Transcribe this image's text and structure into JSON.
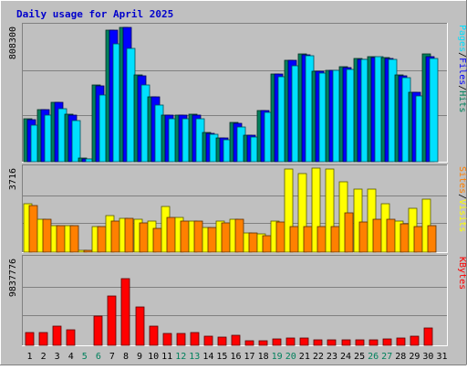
{
  "title": "Daily usage for April 2025",
  "colors": {
    "background": "#c0c0c0",
    "frame_light": "#ffffff",
    "frame_dark": "#808080",
    "grid": "#808080",
    "title": "#0000cc",
    "hits": "#00805c",
    "files": "#0000ff",
    "pages": "#00e0ff",
    "visits": "#ffff00",
    "sites": "#ff8000",
    "kbytes": "#ff0000",
    "weekend_label": "#00805c",
    "weekday_label": "#000000"
  },
  "chart_data": [
    {
      "type": "bar",
      "panel": "top",
      "y_max_label": "808300",
      "categories": [
        "1",
        "2",
        "3",
        "4",
        "5",
        "6",
        "7",
        "8",
        "9",
        "10",
        "11",
        "12",
        "13",
        "14",
        "15",
        "16",
        "17",
        "18",
        "19",
        "20",
        "21",
        "22",
        "23",
        "24",
        "25",
        "26",
        "27",
        "28",
        "29",
        "30",
        "31"
      ],
      "weekend_days": [
        "5",
        "6",
        "12",
        "13",
        "19",
        "20",
        "26",
        "27"
      ],
      "ylim": [
        0,
        808300
      ],
      "legend": [
        {
          "name": "Hits",
          "color": "#00805c"
        },
        {
          "name": "Files",
          "color": "#0000ff"
        },
        {
          "name": "Pages",
          "color": "#00e0ff"
        }
      ],
      "series": [
        {
          "name": "Hits",
          "values": [
            260000,
            315000,
            360000,
            285000,
            20000,
            460000,
            790000,
            810000,
            520000,
            390000,
            280000,
            280000,
            285000,
            175000,
            145000,
            235000,
            160000,
            310000,
            530000,
            610000,
            650000,
            545000,
            550000,
            570000,
            620000,
            630000,
            625000,
            520000,
            420000,
            650000,
            0
          ]
        },
        {
          "name": "Files",
          "values": [
            255000,
            315000,
            358000,
            280000,
            18000,
            458000,
            790000,
            808000,
            518000,
            388000,
            280000,
            278000,
            283000,
            172000,
            142000,
            232000,
            158000,
            308000,
            528000,
            608000,
            645000,
            543000,
            548000,
            568000,
            617000,
            628000,
            622000,
            518000,
            418000,
            630000,
            0
          ]
        },
        {
          "name": "Pages",
          "values": [
            220000,
            280000,
            320000,
            250000,
            16000,
            400000,
            710000,
            680000,
            460000,
            340000,
            260000,
            260000,
            260000,
            165000,
            132000,
            210000,
            150000,
            295000,
            510000,
            580000,
            640000,
            535000,
            550000,
            555000,
            615000,
            630000,
            615000,
            505000,
            395000,
            620000,
            0
          ]
        }
      ]
    },
    {
      "type": "bar",
      "panel": "middle",
      "y_max_label": "3716",
      "categories": [
        "1",
        "2",
        "3",
        "4",
        "5",
        "6",
        "7",
        "8",
        "9",
        "10",
        "11",
        "12",
        "13",
        "14",
        "15",
        "16",
        "17",
        "18",
        "19",
        "20",
        "21",
        "22",
        "23",
        "24",
        "25",
        "26",
        "27",
        "28",
        "29",
        "30",
        "31"
      ],
      "ylim": [
        0,
        3716
      ],
      "legend": [
        {
          "name": "Visits",
          "color": "#ffff00"
        },
        {
          "name": "Sites",
          "color": "#ff8000"
        }
      ],
      "series": [
        {
          "name": "Visits",
          "values": [
            2150,
            1450,
            1200,
            1200,
            100,
            1150,
            1650,
            1500,
            1450,
            1400,
            2050,
            1550,
            1400,
            1100,
            1400,
            1450,
            850,
            800,
            1400,
            3700,
            3500,
            3750,
            3700,
            3150,
            2800,
            2800,
            2150,
            1400,
            1950,
            2350,
            0
          ]
        },
        {
          "name": "Sites",
          "values": [
            2100,
            1450,
            1200,
            1200,
            100,
            1150,
            1400,
            1500,
            1300,
            1050,
            1550,
            1400,
            1400,
            1100,
            1300,
            1450,
            850,
            750,
            1350,
            1150,
            1150,
            1150,
            1150,
            1750,
            1350,
            1450,
            1450,
            1250,
            1150,
            1200,
            0
          ]
        }
      ]
    },
    {
      "type": "bar",
      "panel": "bottom",
      "y_max_label": "9837776",
      "categories": [
        "1",
        "2",
        "3",
        "4",
        "5",
        "6",
        "7",
        "8",
        "9",
        "10",
        "11",
        "12",
        "13",
        "14",
        "15",
        "16",
        "17",
        "18",
        "19",
        "20",
        "21",
        "22",
        "23",
        "24",
        "25",
        "26",
        "27",
        "28",
        "29",
        "30",
        "31"
      ],
      "ylim": [
        0,
        9837776
      ],
      "legend": [
        {
          "name": "KBytes",
          "color": "#ff0000"
        }
      ],
      "series": [
        {
          "name": "KBytes",
          "values": [
            1500000,
            1500000,
            2200000,
            1800000,
            0,
            3300000,
            5600000,
            7600000,
            4400000,
            2200000,
            1400000,
            1400000,
            1500000,
            1000000,
            900000,
            1200000,
            500000,
            500000,
            700000,
            800000,
            800000,
            600000,
            600000,
            600000,
            600000,
            600000,
            700000,
            800000,
            1000000,
            2000000,
            0
          ]
        }
      ]
    }
  ]
}
